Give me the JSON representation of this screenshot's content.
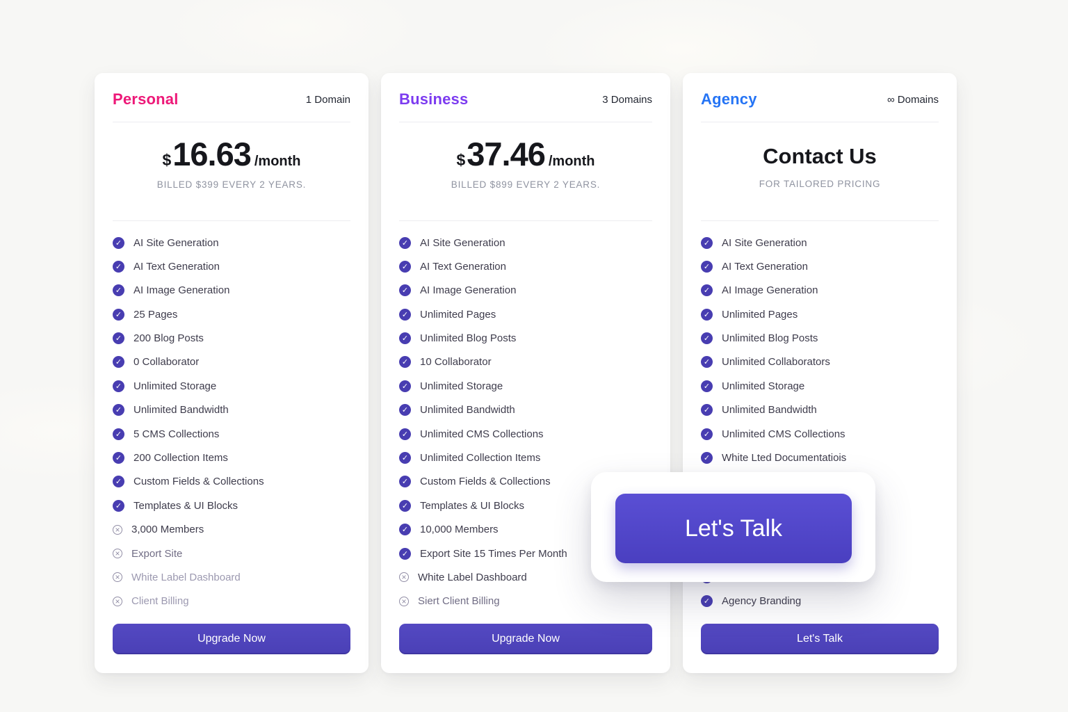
{
  "colors": {
    "page_background": "#f7f7f5",
    "check_icon": "#483db1",
    "cross_icon": "#928ea6",
    "cta_button": "#4c42bb",
    "personal_accent": "#ed1878",
    "business_accent": "#7c3bf0",
    "agency_accent": "#2574f5"
  },
  "plans": [
    {
      "name": "Personal",
      "name_color": "#ed1878",
      "domains": "1 Domain",
      "price": {
        "currency": "$",
        "amount": "16.63",
        "period": "/month",
        "billing_note": "BILLED $399 EVERY 2 YEARS."
      },
      "cta": "Upgrade Now",
      "features": [
        {
          "label": "AI Site Generation",
          "included": true,
          "tone": "dark"
        },
        {
          "label": "AI Text Generation",
          "included": true,
          "tone": "dark"
        },
        {
          "label": "AI Image Generation",
          "included": true,
          "tone": "dark"
        },
        {
          "label": "25 Pages",
          "included": true,
          "tone": "dark"
        },
        {
          "label": "200 Blog Posts",
          "included": true,
          "tone": "dark"
        },
        {
          "label": "0 Collaborator",
          "included": true,
          "tone": "dark"
        },
        {
          "label": "Unlimited Storage",
          "included": true,
          "tone": "dark"
        },
        {
          "label": "Unlimited Bandwidth",
          "included": true,
          "tone": "dark"
        },
        {
          "label": "5 CMS Collections",
          "included": true,
          "tone": "dark"
        },
        {
          "label": "200 Collection Items",
          "included": true,
          "tone": "dark"
        },
        {
          "label": "Custom Fields & Collections",
          "included": true,
          "tone": "dark"
        },
        {
          "label": "Templates & UI Blocks",
          "included": true,
          "tone": "dark"
        },
        {
          "label": "3,000 Members",
          "included": false,
          "tone": "dark"
        },
        {
          "label": "Export Site",
          "included": false,
          "tone": "medium"
        },
        {
          "label": "White Label Dashboard",
          "included": false,
          "tone": "muted"
        },
        {
          "label": "Client Billing",
          "included": false,
          "tone": "muted"
        }
      ]
    },
    {
      "name": "Business",
      "name_color": "#7c3bf0",
      "domains": "3 Domains",
      "price": {
        "currency": "$",
        "amount": "37.46",
        "period": "/month",
        "billing_note": "BILLED $899 EVERY 2 YEARS."
      },
      "cta": "Upgrade Now",
      "features": [
        {
          "label": "AI Site Generation",
          "included": true,
          "tone": "dark"
        },
        {
          "label": "AI Text Generation",
          "included": true,
          "tone": "dark"
        },
        {
          "label": "AI Image Generation",
          "included": true,
          "tone": "dark"
        },
        {
          "label": "Unlimited Pages",
          "included": true,
          "tone": "dark"
        },
        {
          "label": "Unlimited Blog Posts",
          "included": true,
          "tone": "dark"
        },
        {
          "label": "10 Collaborator",
          "included": true,
          "tone": "dark"
        },
        {
          "label": "Unlimited Storage",
          "included": true,
          "tone": "dark"
        },
        {
          "label": "Unlimited Bandwidth",
          "included": true,
          "tone": "dark"
        },
        {
          "label": "Unlimited CMS Collections",
          "included": true,
          "tone": "dark"
        },
        {
          "label": "Unlimited Collection Items",
          "included": true,
          "tone": "dark"
        },
        {
          "label": "Custom Fields & Collections",
          "included": true,
          "tone": "dark"
        },
        {
          "label": "Templates & UI Blocks",
          "included": true,
          "tone": "dark"
        },
        {
          "label": "10,000 Members",
          "included": true,
          "tone": "dark"
        },
        {
          "label": "Export Site 15 Times Per Month",
          "included": true,
          "tone": "dark"
        },
        {
          "label": "White Label Dashboard",
          "included": false,
          "tone": "dark"
        },
        {
          "label": "Siert Client Billing",
          "included": false,
          "tone": "medium"
        }
      ]
    },
    {
      "name": "Agency",
      "name_color": "#2574f5",
      "domains": "∞ Domains",
      "contact": {
        "title": "Contact Us",
        "subtitle": "FOR TAILORED PRICING"
      },
      "cta": "Let's Talk",
      "features": [
        {
          "label": "AI Site Generation",
          "included": true,
          "tone": "dark"
        },
        {
          "label": "AI Text Generation",
          "included": true,
          "tone": "dark"
        },
        {
          "label": "AI Image Generation",
          "included": true,
          "tone": "dark"
        },
        {
          "label": "Unlimited Pages",
          "included": true,
          "tone": "dark"
        },
        {
          "label": "Unlimited Blog Posts",
          "included": true,
          "tone": "dark"
        },
        {
          "label": "Unlimited Collaborators",
          "included": true,
          "tone": "dark"
        },
        {
          "label": "Unlimited Storage",
          "included": true,
          "tone": "dark"
        },
        {
          "label": "Unlimited Bandwidth",
          "included": true,
          "tone": "dark"
        },
        {
          "label": "Unlimited CMS Collections",
          "included": true,
          "tone": "dark"
        },
        {
          "label": "White Lted Documentatiois",
          "included": true,
          "tone": "dark"
        },
        {
          "label": "",
          "included": true,
          "tone": "dark",
          "obscured": true
        },
        {
          "label": "",
          "included": true,
          "tone": "dark",
          "obscured": true
        },
        {
          "label": "",
          "included": true,
          "tone": "dark",
          "obscured": true
        },
        {
          "label": "",
          "included": true,
          "tone": "dark",
          "obscured": true
        },
        {
          "label": "",
          "included": true,
          "tone": "dark",
          "obscured": true
        },
        {
          "label": "Agency Branding",
          "included": true,
          "tone": "dark"
        }
      ]
    }
  ],
  "popup": {
    "cta": "Let's Talk"
  }
}
